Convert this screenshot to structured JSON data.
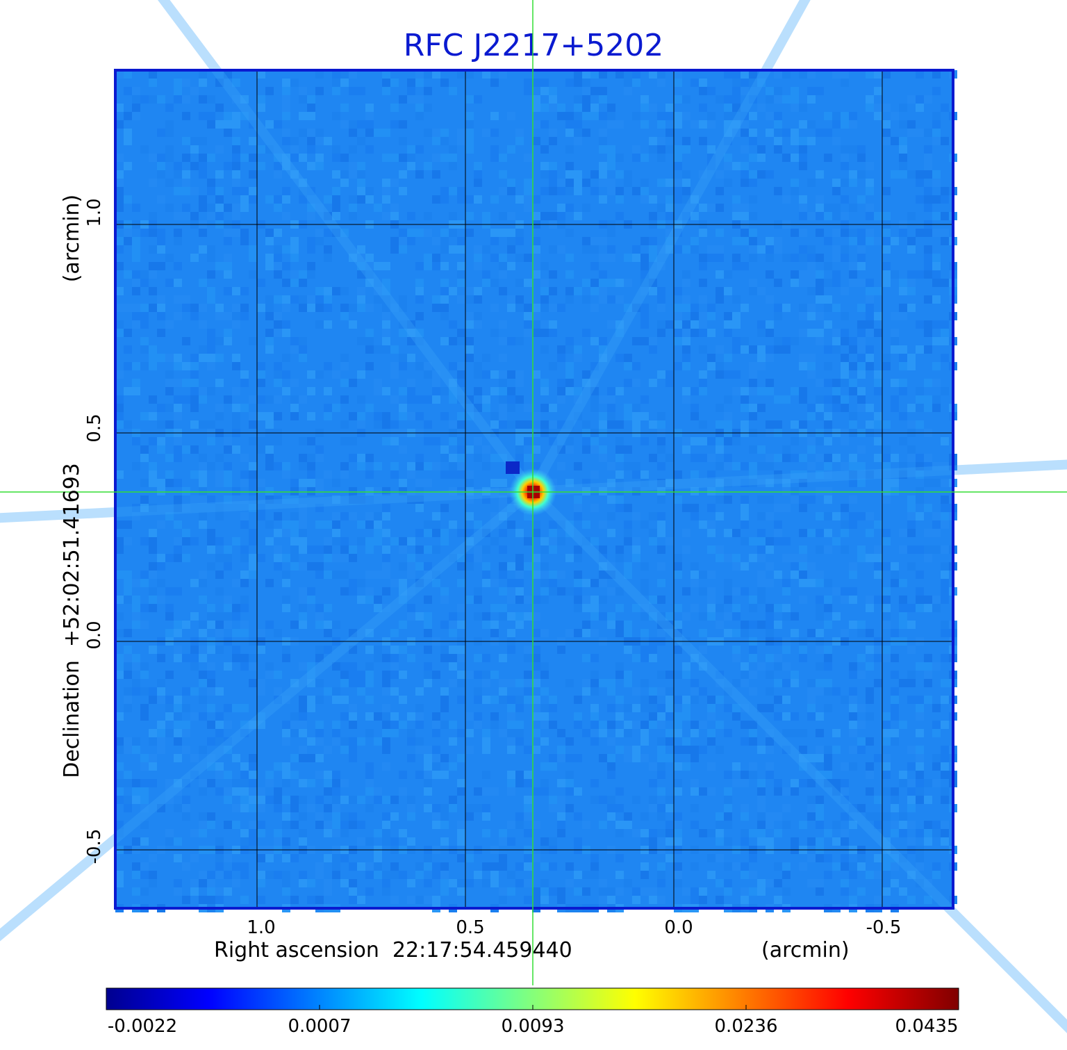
{
  "chart_data": {
    "type": "heatmap",
    "title": "RFC J2217+5202",
    "xlabel": "Right ascension  22:17:54.459440",
    "x_unit": "(arcmin)",
    "ylabel": "Declination  +52:02:51.41693",
    "y_unit": "(arcmin)",
    "xlim": [
      1.34,
      -0.67
    ],
    "ylim": [
      -0.64,
      1.37
    ],
    "x_ticks": [
      "1.0",
      "0.5",
      "0.0",
      "-0.5"
    ],
    "x_tick_values": [
      1.0,
      0.5,
      0.0,
      -0.5
    ],
    "y_ticks": [
      "1.0",
      "0.5",
      "0.0",
      "-0.5"
    ],
    "y_tick_values": [
      1.0,
      0.5,
      0.0,
      -0.5
    ],
    "grid": true,
    "crosshair": {
      "x": 0.34,
      "y": 0.36
    },
    "source_peak": {
      "x": 0.34,
      "y": 0.36,
      "value": 0.0435
    },
    "colorbar": {
      "colormap": "jet",
      "min": -0.0022,
      "max": 0.0435,
      "tick_labels": [
        "-0.0022",
        "0.0007",
        "0.0093",
        "0.0236",
        "0.0435"
      ]
    },
    "background_level": 0.0
  },
  "colors": {
    "title": "#0a1ad0",
    "frame": "#0a1ad0",
    "crosshair": "#33dd33",
    "grid": "#000000"
  }
}
